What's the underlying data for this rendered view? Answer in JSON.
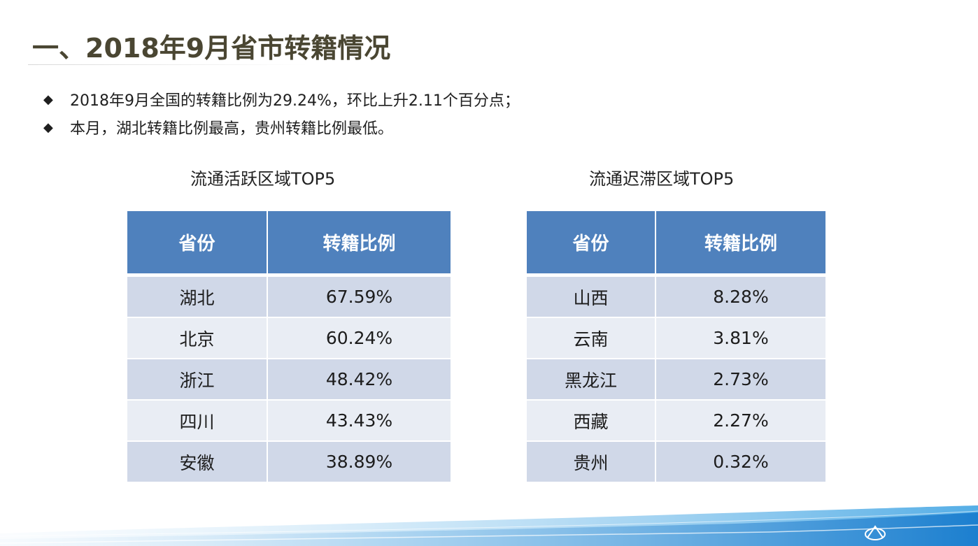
{
  "page": {
    "title": "一、2018年9月省市转籍情况",
    "bullet_icon": "diamond-icon",
    "bullets": [
      "2018年9月全国的转籍比例为29.24%，环比上升2.11个百分点；",
      "本月，湖北转籍比例最高，贵州转籍比例最低。"
    ]
  },
  "colors": {
    "header": "#4f81bd",
    "row_odd": "#d0d8e8",
    "row_even": "#e9edf4",
    "title": "#4a4632"
  },
  "active_table": {
    "caption": "流通活跃区域TOP5",
    "headers": [
      "省份",
      "转籍比例"
    ],
    "rows": [
      [
        "湖北",
        "67.59%"
      ],
      [
        "北京",
        "60.24%"
      ],
      [
        "浙江",
        "48.42%"
      ],
      [
        "四川",
        "43.43%"
      ],
      [
        "安徽",
        "38.89%"
      ]
    ]
  },
  "stagnant_table": {
    "caption": "流通迟滞区域TOP5",
    "headers": [
      "省份",
      "转籍比例"
    ],
    "rows": [
      [
        "山西",
        "8.28%"
      ],
      [
        "云南",
        "3.81%"
      ],
      [
        "黑龙江",
        "2.73%"
      ],
      [
        "西藏",
        "2.27%"
      ],
      [
        "贵州",
        "0.32%"
      ]
    ]
  },
  "footer": {
    "logo_icon": "association-logo-icon"
  }
}
